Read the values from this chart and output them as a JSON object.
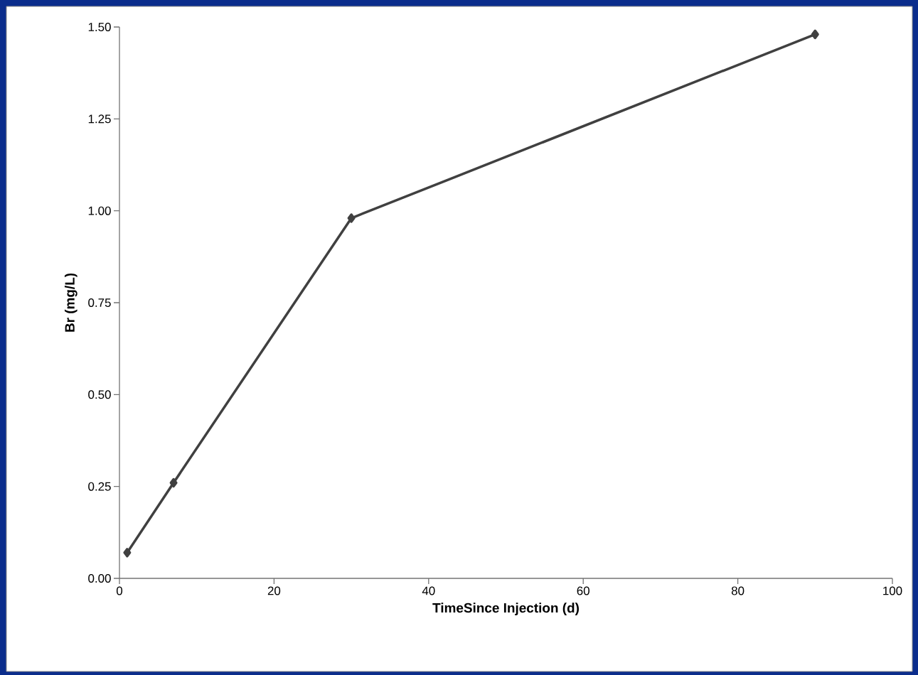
{
  "chart_data": {
    "type": "line",
    "xlabel": "TimeSince Injection (d)",
    "ylabel": "Br (mg/L)",
    "x": [
      1,
      7,
      30,
      90
    ],
    "values": [
      0.07,
      0.26,
      0.98,
      1.48
    ],
    "color": "#404040",
    "marker": "diamond",
    "line_style": "solid",
    "xlim": [
      0,
      100
    ],
    "ylim": [
      0,
      1.5
    ],
    "xticks": [
      0,
      20,
      40,
      60,
      80,
      100
    ],
    "yticks": [
      {
        "value": 0,
        "label": "0.00"
      },
      {
        "value": 0.25,
        "label": "0.25"
      },
      {
        "value": 0.5,
        "label": "0.50"
      },
      {
        "value": 0.75,
        "label": "0.75"
      },
      {
        "value": 1.0,
        "label": "1.00"
      },
      {
        "value": 1.25,
        "label": "1.25"
      },
      {
        "value": 1.5,
        "label": "1.50"
      }
    ]
  }
}
